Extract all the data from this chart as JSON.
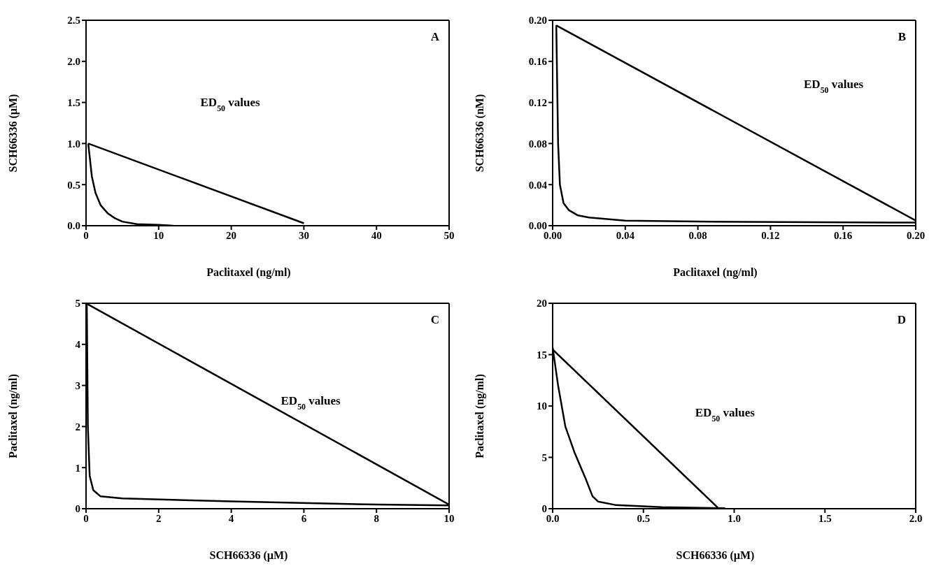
{
  "chart_data": [
    {
      "type": "line",
      "title": "A",
      "xlabel": "Paclitaxel (ng/ml)",
      "ylabel": "SCH66336 (µM)",
      "annotations": [
        "ED$_{50}$ values"
      ],
      "xlim": [
        0,
        50
      ],
      "xticks": [
        0,
        10,
        20,
        30,
        40,
        50
      ],
      "ylim": [
        0,
        2.5
      ],
      "yticks": [
        {
          "value": 0,
          "label": "0.0"
        },
        {
          "value": 0.5,
          "label": "0.5"
        },
        {
          "value": 1,
          "label": "1.0"
        },
        {
          "value": 1.5,
          "label": "1.5"
        },
        {
          "value": 2,
          "label": "2.0"
        },
        {
          "value": 2.5,
          "label": "2.5"
        }
      ],
      "grid": false,
      "legend": false,
      "marker": "none",
      "line_style": "solid",
      "series": [
        {
          "color": "#000000",
          "x": [
            0.3,
            30
          ],
          "values": [
            1.0,
            0.03
          ]
        },
        {
          "color": "#000000",
          "x": [
            0.3,
            0.8,
            1.3,
            2,
            3,
            4,
            5,
            7,
            10,
            12
          ],
          "values": [
            1.0,
            0.6,
            0.4,
            0.25,
            0.15,
            0.09,
            0.05,
            0.02,
            0.01,
            0
          ]
        }
      ]
    },
    {
      "type": "line",
      "title": "B",
      "xlabel": "Paclitaxel (ng/ml)",
      "ylabel": "SCH66336 (nM)",
      "annotations": [
        "ED$_{50}$ values"
      ],
      "xlim": [
        0,
        0.2
      ],
      "xticks": [
        {
          "value": 0,
          "label": "0.00"
        },
        0.04,
        0.08,
        0.12,
        0.16,
        {
          "value": 0.2,
          "label": "0.20"
        }
      ],
      "ylim": [
        0,
        0.2
      ],
      "yticks": [
        {
          "value": 0,
          "label": "0.00"
        },
        0.04,
        0.08,
        0.12,
        0.16,
        {
          "value": 0.2,
          "label": "0.20"
        }
      ],
      "grid": false,
      "legend": false,
      "marker": "none",
      "line_style": "solid",
      "series": [
        {
          "color": "#000000",
          "x": [
            0.002,
            0.2
          ],
          "values": [
            0.195,
            0.005
          ]
        },
        {
          "color": "#000000",
          "x": [
            0.002,
            0.003,
            0.004,
            0.006,
            0.009,
            0.014,
            0.02,
            0.04,
            0.08,
            0.2
          ],
          "values": [
            0.195,
            0.08,
            0.04,
            0.022,
            0.015,
            0.01,
            0.008,
            0.005,
            0.004,
            0.003
          ]
        }
      ]
    },
    {
      "type": "line",
      "title": "C",
      "xlabel": "SCH66336 (µM)",
      "ylabel": "Paclitaxel (ng/ml)",
      "annotations": [
        "ED$_{50}$ values"
      ],
      "xlim": [
        0,
        10
      ],
      "xticks": [
        0,
        2,
        4,
        6,
        8,
        10
      ],
      "ylim": [
        0,
        5
      ],
      "yticks": [
        0,
        1,
        2,
        3,
        4,
        5
      ],
      "grid": false,
      "legend": false,
      "marker": "none",
      "line_style": "solid",
      "series": [
        {
          "color": "#000000",
          "x": [
            0,
            10
          ],
          "values": [
            5,
            0.1
          ]
        },
        {
          "color": "#000000",
          "x": [
            0.02,
            0.05,
            0.1,
            0.2,
            0.4,
            1,
            4,
            8,
            10
          ],
          "values": [
            5,
            2,
            0.8,
            0.45,
            0.3,
            0.25,
            0.18,
            0.1,
            0.08
          ]
        }
      ]
    },
    {
      "type": "line",
      "title": "D",
      "xlabel": "SCH66336 (µM)",
      "ylabel": "Paclitaxel (ng/ml)",
      "annotations": [
        "ED$_{50}$ values"
      ],
      "xlim": [
        0,
        2
      ],
      "xticks": [
        {
          "value": 0,
          "label": "0.0"
        },
        0.5,
        {
          "value": 1,
          "label": "1.0"
        },
        1.5,
        {
          "value": 2,
          "label": "2.0"
        }
      ],
      "ylim": [
        0,
        20
      ],
      "yticks": [
        0,
        5,
        10,
        15,
        20
      ],
      "grid": false,
      "legend": false,
      "marker": "none",
      "line_style": "solid",
      "series": [
        {
          "color": "#000000",
          "x": [
            0,
            0.91
          ],
          "values": [
            15.5,
            0.1
          ]
        },
        {
          "color": "#000000",
          "x": [
            0,
            0.03,
            0.07,
            0.12,
            0.18,
            0.22,
            0.25,
            0.35,
            0.6,
            0.95
          ],
          "values": [
            15.7,
            12,
            8,
            5.5,
            3,
            1.2,
            0.7,
            0.35,
            0.15,
            0.05
          ]
        }
      ]
    }
  ]
}
